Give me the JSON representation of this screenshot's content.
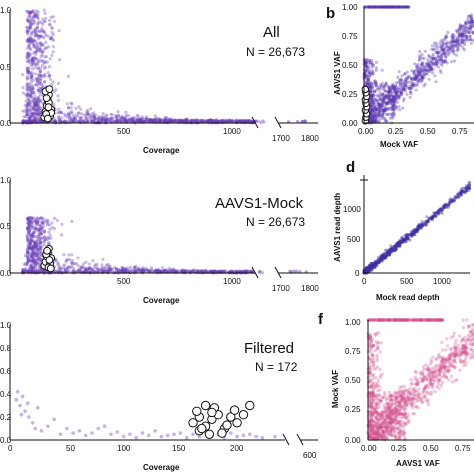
{
  "chart_data": [
    {
      "panel": "",
      "type": "scatter",
      "annotation": {
        "title": "All",
        "n": "N = 26,673"
      },
      "xlabel": "Coverage",
      "ylabel": "",
      "xlim": [
        0,
        1800
      ],
      "ylim": [
        0,
        1.0
      ],
      "xticks": [
        "500",
        "1000",
        "1700",
        "1800"
      ],
      "yticks": [
        "0.0",
        "0.5",
        "1.0"
      ],
      "point_color": "#6a3fb8",
      "highlight": [
        [
          130,
          0.05
        ],
        [
          135,
          0.1
        ],
        [
          140,
          0.15
        ],
        [
          145,
          0.2
        ],
        [
          150,
          0.25
        ],
        [
          155,
          0.06
        ],
        [
          160,
          0.12
        ],
        [
          150,
          0.18
        ],
        [
          140,
          0.22
        ],
        [
          135,
          0.28
        ],
        [
          160,
          0.09
        ],
        [
          148,
          0.14
        ],
        [
          138,
          0.08
        ],
        [
          152,
          0.3
        ],
        [
          145,
          0.04
        ]
      ]
    },
    {
      "panel": "",
      "type": "scatter",
      "annotation": {
        "title": "AAVS1-Mock",
        "n": "N = 26,673"
      },
      "xlabel": "Coverage",
      "ylabel": "",
      "xlim": [
        0,
        1800
      ],
      "ylim": [
        0,
        1.0
      ],
      "xticks": [
        "500",
        "1000",
        "1700",
        "1800"
      ],
      "yticks": [
        "0.0",
        "0.5",
        "1.0"
      ],
      "point_color": "#6a3fb8",
      "highlight": [
        [
          130,
          0.08
        ],
        [
          135,
          0.12
        ],
        [
          140,
          0.18
        ],
        [
          145,
          0.22
        ],
        [
          150,
          0.26
        ],
        [
          155,
          0.1
        ],
        [
          160,
          0.16
        ],
        [
          148,
          0.06
        ],
        [
          138,
          0.2
        ],
        [
          152,
          0.14
        ],
        [
          142,
          0.24
        ],
        [
          158,
          0.05
        ]
      ]
    },
    {
      "panel": "",
      "type": "scatter",
      "annotation": {
        "title": "Filtered",
        "n": "N = 172"
      },
      "xlabel": "Coverage",
      "ylabel": "",
      "xlim": [
        0,
        600
      ],
      "ylim": [
        0,
        1.0
      ],
      "xticks": [
        "0",
        "50",
        "100",
        "150",
        "200",
        "600"
      ],
      "yticks": [
        "0.0",
        "0.2",
        "0.4",
        "0.6",
        "0.8",
        "1.0"
      ],
      "point_color": "#7a5cc8",
      "points": [
        [
          5,
          0.35
        ],
        [
          8,
          0.3
        ],
        [
          10,
          0.38
        ],
        [
          12,
          0.25
        ],
        [
          15,
          0.2
        ],
        [
          6,
          0.42
        ],
        [
          18,
          0.15
        ],
        [
          20,
          0.1
        ],
        [
          25,
          0.08
        ],
        [
          30,
          0.12
        ],
        [
          40,
          0.05
        ],
        [
          50,
          0.06
        ],
        [
          60,
          0.04
        ],
        [
          70,
          0.1
        ],
        [
          80,
          0.05
        ],
        [
          90,
          0.03
        ],
        [
          100,
          0.02
        ],
        [
          110,
          0.04
        ],
        [
          120,
          0.03
        ],
        [
          130,
          0.05
        ],
        [
          140,
          0.02
        ],
        [
          150,
          0.03
        ],
        [
          160,
          0.04
        ],
        [
          170,
          0.02
        ],
        [
          180,
          0.03
        ],
        [
          190,
          0.05
        ],
        [
          200,
          0.02
        ],
        [
          210,
          0.03
        ],
        [
          9,
          0.22
        ],
        [
          14,
          0.32
        ],
        [
          22,
          0.28
        ],
        [
          35,
          0.18
        ],
        [
          45,
          0.1
        ],
        [
          55,
          0.08
        ],
        [
          65,
          0.06
        ],
        [
          75,
          0.12
        ],
        [
          85,
          0.07
        ],
        [
          95,
          0.05
        ],
        [
          105,
          0.06
        ],
        [
          115,
          0.08
        ],
        [
          125,
          0.04
        ],
        [
          135,
          0.06
        ],
        [
          145,
          0.05
        ],
        [
          155,
          0.07
        ],
        [
          165,
          0.05
        ],
        [
          175,
          0.06
        ],
        [
          185,
          0.04
        ],
        [
          195,
          0.03
        ]
      ],
      "highlight": [
        [
          145,
          0.15
        ],
        [
          150,
          0.2
        ],
        [
          155,
          0.12
        ],
        [
          160,
          0.18
        ],
        [
          165,
          0.22
        ],
        [
          150,
          0.08
        ],
        [
          158,
          0.05
        ],
        [
          170,
          0.1
        ],
        [
          175,
          0.2
        ],
        [
          148,
          0.25
        ],
        [
          162,
          0.28
        ],
        [
          180,
          0.15
        ],
        [
          168,
          0.06
        ],
        [
          155,
          0.3
        ],
        [
          152,
          0.1
        ],
        [
          160,
          0.24
        ],
        [
          172,
          0.13
        ],
        [
          178,
          0.26
        ],
        [
          185,
          0.22
        ],
        [
          190,
          0.3
        ]
      ]
    },
    {
      "panel": "b",
      "type": "scatter",
      "xlabel": "Mock VAF",
      "ylabel": "AAVS1 VAF",
      "xlim": [
        0,
        0.8
      ],
      "ylim": [
        0,
        1.0
      ],
      "xticks": [
        "0.00",
        "0.25",
        "0.50",
        "0.75"
      ],
      "yticks": [
        "0.00",
        "0.25",
        "0.50",
        "0.75",
        "1.00"
      ],
      "point_color": "#5a35b0",
      "highlight": [
        [
          0.01,
          0.02
        ],
        [
          0.015,
          0.05
        ],
        [
          0.02,
          0.08
        ],
        [
          0.01,
          0.11
        ],
        [
          0.02,
          0.14
        ],
        [
          0.015,
          0.17
        ],
        [
          0.01,
          0.2
        ],
        [
          0.02,
          0.23
        ],
        [
          0.015,
          0.26
        ],
        [
          0.01,
          0.29
        ]
      ]
    },
    {
      "panel": "d",
      "type": "scatter",
      "xlabel": "Mock read depth",
      "ylabel": "AAVS1 read depth",
      "xlim": [
        0,
        1000
      ],
      "ylim": [
        0,
        1200
      ],
      "xticks": [
        "0",
        "500",
        "1000"
      ],
      "yticks": [
        "0",
        "500",
        "1000"
      ],
      "point_color": "#3b2fa0"
    },
    {
      "panel": "f",
      "type": "scatter",
      "xlabel": "AAVS1 VAF",
      "ylabel": "Mock VAF",
      "xlim": [
        0,
        0.8
      ],
      "ylim": [
        0,
        1.0
      ],
      "xticks": [
        "0.00",
        "0.25",
        "0.50",
        "0.75"
      ],
      "yticks": [
        "0.00",
        "0.25",
        "0.50",
        "0.75",
        "1.00"
      ],
      "point_color": "#d0508f"
    }
  ]
}
